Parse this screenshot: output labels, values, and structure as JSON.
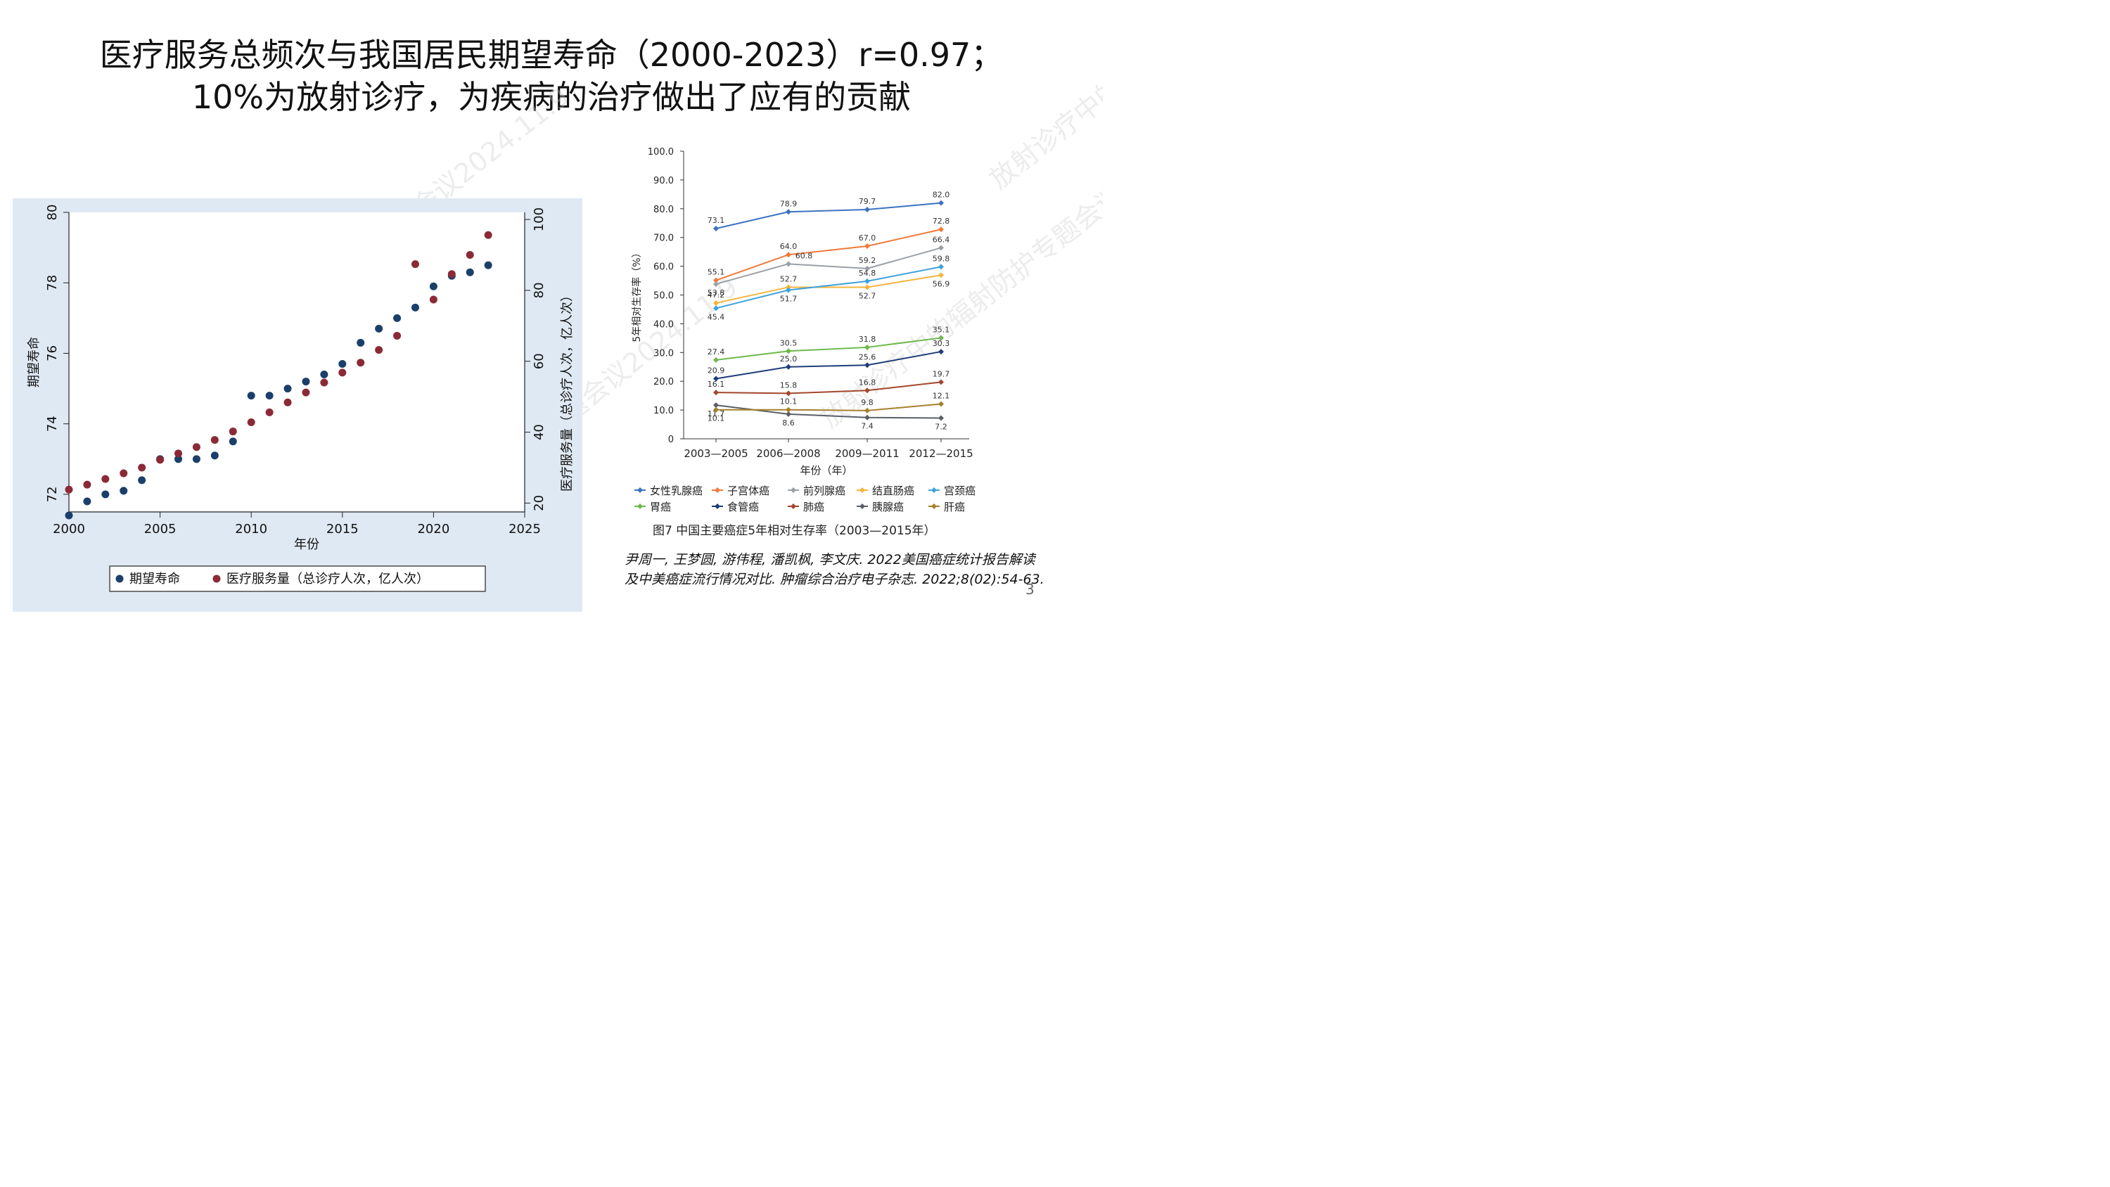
{
  "slide": {
    "title_line1": "医疗服务总频次与我国居民期望寿命（2000-2023）r=0.97；",
    "title_line2": "10%为放射诊疗，为疾病的治疗做出了应有的贡献",
    "citation": "尹周一, 王梦圆, 游伟程, 潘凯枫, 李文庆. 2022美国癌症统计报告解读及中美癌症流行情况对比. 肿瘤综合治疗电子杂志. 2022;8(02):54-63.",
    "page_number": "3",
    "watermark_text": "放射诊疗中的辐射防护专题会议2024.11.9"
  },
  "chart_data": [
    {
      "type": "scatter",
      "xlabel": "年份",
      "ylabel": "期望寿命",
      "y2label": "医疗服务量（总诊疗人次，亿人次）",
      "xlim": [
        2000,
        2025
      ],
      "xticks": [
        2000,
        2005,
        2010,
        2015,
        2020,
        2025
      ],
      "ylim": [
        71.5,
        80
      ],
      "yticks": [
        72,
        74,
        76,
        78,
        80
      ],
      "y2lim": [
        17.5,
        102
      ],
      "y2ticks": [
        20,
        40,
        60,
        80,
        100
      ],
      "background": "#dfe9f3",
      "legend_position": "bottom",
      "series": [
        {
          "name": "期望寿命",
          "axis": "left",
          "color": "#1b3f6b",
          "points": [
            [
              2000,
              71.4
            ],
            [
              2001,
              71.8
            ],
            [
              2002,
              72.0
            ],
            [
              2003,
              72.1
            ],
            [
              2004,
              72.4
            ],
            [
              2005,
              73.0
            ],
            [
              2006,
              73.0
            ],
            [
              2007,
              73.0
            ],
            [
              2008,
              73.1
            ],
            [
              2009,
              73.5
            ],
            [
              2010,
              74.8
            ],
            [
              2011,
              74.8
            ],
            [
              2012,
              75.0
            ],
            [
              2013,
              75.2
            ],
            [
              2014,
              75.4
            ],
            [
              2015,
              75.7
            ],
            [
              2016,
              76.3
            ],
            [
              2017,
              76.7
            ],
            [
              2018,
              77.0
            ],
            [
              2019,
              77.3
            ],
            [
              2020,
              77.9
            ],
            [
              2021,
              78.2
            ],
            [
              2022,
              78.3
            ],
            [
              2023,
              78.5
            ]
          ]
        },
        {
          "name": "医疗服务量（总诊疗人次，亿人次）",
          "axis": "right",
          "color": "#8b2a36",
          "points": [
            [
              2000,
              23.8
            ],
            [
              2001,
              25.2
            ],
            [
              2002,
              26.8
            ],
            [
              2003,
              28.4
            ],
            [
              2004,
              30.0
            ],
            [
              2005,
              32.2
            ],
            [
              2006,
              34.0
            ],
            [
              2007,
              35.8
            ],
            [
              2008,
              37.8
            ],
            [
              2009,
              40.2
            ],
            [
              2010,
              42.8
            ],
            [
              2011,
              45.6
            ],
            [
              2012,
              48.4
            ],
            [
              2013,
              51.2
            ],
            [
              2014,
              54.0
            ],
            [
              2015,
              56.8
            ],
            [
              2016,
              59.6
            ],
            [
              2017,
              63.2
            ],
            [
              2018,
              67.2
            ],
            [
              2019,
              87.4
            ],
            [
              2020,
              77.4
            ],
            [
              2021,
              84.6
            ],
            [
              2022,
              90.0
            ],
            [
              2023,
              95.6
            ]
          ]
        }
      ]
    },
    {
      "type": "line",
      "caption": "图7   中国主要癌症5年相对生存率（2003—2015年）",
      "xlabel": "年份（年）",
      "ylabel": "5年相对生存率（%）",
      "categories": [
        "2003—2005",
        "2006—2008",
        "2009—2011",
        "2012—2015"
      ],
      "ylim": [
        0,
        100
      ],
      "yticks": [
        "0",
        "10.0",
        "20.0",
        "30.0",
        "40.0",
        "50.0",
        "60.0",
        "70.0",
        "80.0",
        "90.0",
        "100.0"
      ],
      "legend_position": "bottom",
      "series": [
        {
          "name": "女性乳腺癌",
          "color": "#3b73c2",
          "values": [
            73.1,
            78.9,
            79.7,
            82.0
          ],
          "labels": [
            "73.1",
            "78.9",
            "79.7",
            "82.0"
          ]
        },
        {
          "name": "子宫体癌",
          "color": "#f07a3a",
          "values": [
            55.1,
            64.0,
            67.0,
            72.8
          ],
          "labels": [
            "55.1",
            "64.0",
            "67.0",
            "72.8"
          ]
        },
        {
          "name": "前列腺癌",
          "color": "#9aa0a6",
          "values": [
            53.8,
            60.8,
            59.2,
            66.4
          ],
          "labels": [
            "53.8",
            "60.8",
            "59.2",
            "66.4"
          ]
        },
        {
          "name": "结直肠癌",
          "color": "#f6b43c",
          "values": [
            47.2,
            52.7,
            52.7,
            56.9
          ],
          "labels": [
            "47.2",
            "52.7",
            "52.7",
            "56.9"
          ]
        },
        {
          "name": "宫颈癌",
          "color": "#3fa2dc",
          "values": [
            45.4,
            51.7,
            54.8,
            59.8
          ],
          "labels": [
            "45.4",
            "51.7",
            "54.8",
            "59.8"
          ]
        },
        {
          "name": "胃癌",
          "color": "#6cb84a",
          "values": [
            27.4,
            30.5,
            31.8,
            35.1
          ],
          "labels": [
            "27.4",
            "30.5",
            "31.8",
            "35.1"
          ]
        },
        {
          "name": "食管癌",
          "color": "#1f3d7a",
          "values": [
            20.9,
            25.0,
            25.6,
            30.3
          ],
          "labels": [
            "20.9",
            "25.0",
            "25.6",
            "30.3"
          ]
        },
        {
          "name": "肺癌",
          "color": "#a2472b",
          "values": [
            16.1,
            15.8,
            16.8,
            19.7
          ],
          "labels": [
            "16.1",
            "15.8",
            "16.8",
            "19.7"
          ]
        },
        {
          "name": "胰腺癌",
          "color": "#5a5f66",
          "values": [
            11.7,
            8.6,
            7.4,
            7.2
          ],
          "labels": [
            "11.7",
            "8.6",
            "7.4",
            "7.2"
          ]
        },
        {
          "name": "肝癌",
          "color": "#a7802c",
          "values": [
            10.1,
            10.1,
            9.8,
            12.1
          ],
          "labels": [
            "10.1",
            "10.1",
            "9.8",
            "12.1"
          ]
        }
      ]
    }
  ]
}
